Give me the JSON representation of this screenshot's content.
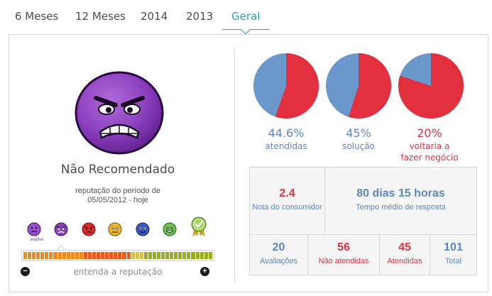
{
  "tabs": [
    {
      "label": "6 Meses"
    },
    {
      "label": "12 Meses"
    },
    {
      "label": "2014"
    },
    {
      "label": "2013"
    },
    {
      "label": "Geral",
      "active": true
    }
  ],
  "reputation": {
    "status": "Não Recomendado",
    "period_line1": "reputação do período de",
    "period_line2": "05/05/2012 - hoje",
    "analysis_label": "análise",
    "scale_caption": "entenda a reputação",
    "scale_icons": [
      "purple-face-analysis",
      "purple-face-not-recommended",
      "red-face",
      "yellow-face",
      "blue-face",
      "green-face",
      "ra1000-seal"
    ]
  },
  "pies": [
    {
      "value": "44.6%",
      "label1": "atendidas",
      "label2": "",
      "fraction": 0.446,
      "color": "blue"
    },
    {
      "value": "45%",
      "label1": "solução",
      "label2": "",
      "fraction": 0.45,
      "color": "blue"
    },
    {
      "value": "20%",
      "label1": "voltaria a",
      "label2": "fazer negócio",
      "fraction": 0.2,
      "color": "red"
    }
  ],
  "stats": {
    "score_value": "2.4",
    "score_label": "Nota do consumidor",
    "response_value": "80 dias 15 horas",
    "response_label": "Tempo médio de resposta",
    "reviews_value": "20",
    "reviews_label": "Avaliações",
    "unanswered_value": "56",
    "unanswered_label": "Não atendidas",
    "answered_value": "45",
    "answered_label": "Atendidas",
    "total_value": "101",
    "total_label": "Total"
  },
  "colors": {
    "accent": "#2a9fc4",
    "pie_blue": "#6a98cd",
    "pie_red": "#e2303e",
    "text_blue": "#5b87c0",
    "text_red": "#e0313f"
  }
}
